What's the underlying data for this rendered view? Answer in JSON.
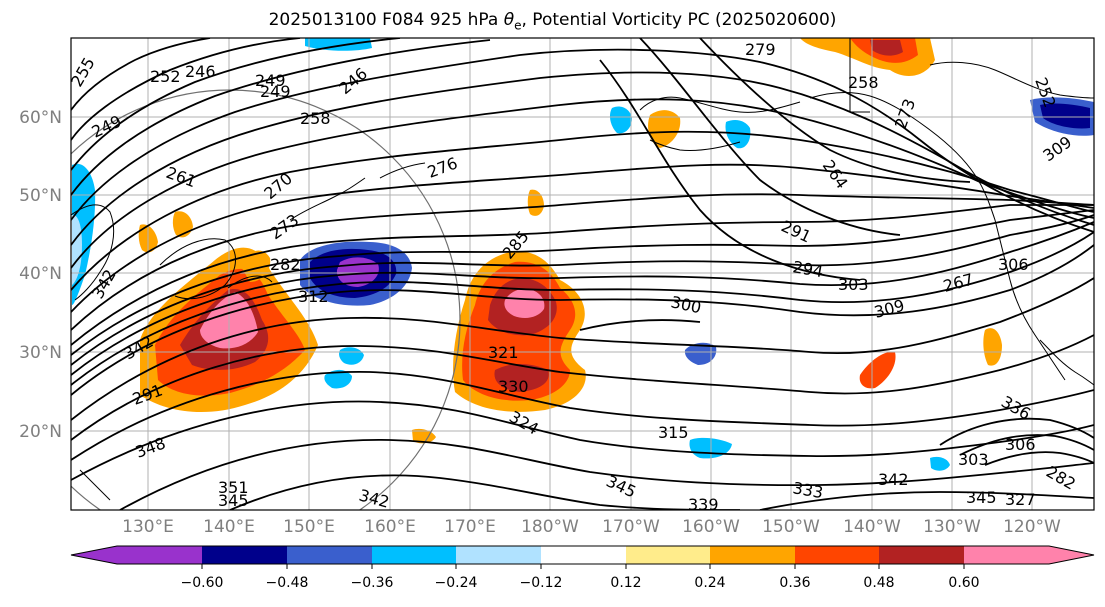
{
  "title": {
    "prefix": "2025013100 F084 925 hPa ",
    "theta_symbol": "θ",
    "theta_sub": "e",
    "suffix": ", Potential Vorticity PC (2025020600)"
  },
  "map": {
    "lat_labels": [
      "60°N",
      "50°N",
      "40°N",
      "30°N",
      "20°N"
    ],
    "lon_labels": [
      "130°E",
      "140°E",
      "150°E",
      "160°E",
      "170°E",
      "180°W",
      "170°W",
      "160°W",
      "150°W",
      "140°W",
      "130°W",
      "120°W"
    ],
    "contour_labels": [
      {
        "text": "279"
      },
      {
        "text": "255"
      },
      {
        "text": "246"
      },
      {
        "text": "252"
      },
      {
        "text": "249"
      },
      {
        "text": "249"
      },
      {
        "text": "246"
      },
      {
        "text": "258"
      },
      {
        "text": "249"
      },
      {
        "text": "261"
      },
      {
        "text": "276"
      },
      {
        "text": "270"
      },
      {
        "text": "273"
      },
      {
        "text": "282"
      },
      {
        "text": "285"
      },
      {
        "text": "291"
      },
      {
        "text": "294"
      },
      {
        "text": "303"
      },
      {
        "text": "300"
      },
      {
        "text": "312"
      },
      {
        "text": "309"
      },
      {
        "text": "321"
      },
      {
        "text": "330"
      },
      {
        "text": "324"
      },
      {
        "text": "315"
      },
      {
        "text": "291"
      },
      {
        "text": "342"
      },
      {
        "text": "348"
      },
      {
        "text": "351"
      },
      {
        "text": "345"
      },
      {
        "text": "342"
      },
      {
        "text": "345"
      },
      {
        "text": "339"
      },
      {
        "text": "333"
      },
      {
        "text": "342"
      },
      {
        "text": "345"
      },
      {
        "text": "327"
      },
      {
        "text": "303"
      },
      {
        "text": "306"
      },
      {
        "text": "336"
      },
      {
        "text": "282"
      },
      {
        "text": "264"
      },
      {
        "text": "273"
      },
      {
        "text": "258"
      },
      {
        "text": "252"
      },
      {
        "text": "309"
      },
      {
        "text": "306"
      },
      {
        "text": "267"
      },
      {
        "text": "342"
      }
    ]
  },
  "colorbar": {
    "colors": [
      "#9932cc",
      "#00008b",
      "#3a5fcd",
      "#00bfff",
      "#b0e2ff",
      "#ffffff",
      "#ffec8b",
      "#ffa500",
      "#ff4500",
      "#b22222",
      "#ff82ab"
    ],
    "tick_labels": [
      "−0.60",
      "−0.48",
      "−0.36",
      "−0.24",
      "−0.12",
      "0.12",
      "0.24",
      "0.36",
      "0.48",
      "0.60"
    ]
  }
}
